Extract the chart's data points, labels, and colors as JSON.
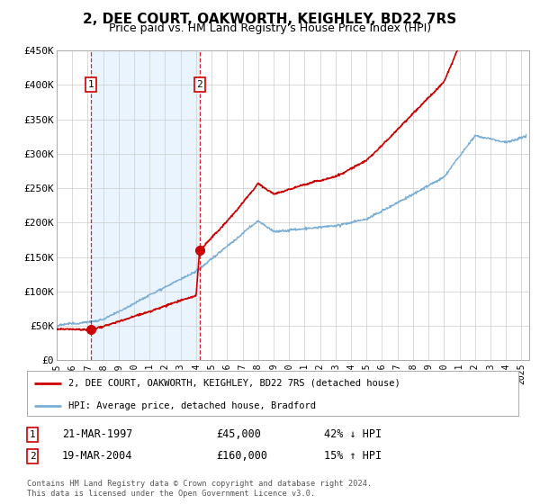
{
  "title": "2, DEE COURT, OAKWORTH, KEIGHLEY, BD22 7RS",
  "subtitle": "Price paid vs. HM Land Registry's House Price Index (HPI)",
  "sale1_date": 1997.22,
  "sale1_price": 45000,
  "sale1_label": "1",
  "sale1_text": "21-MAR-1997",
  "sale1_amount": "£45,000",
  "sale1_hpi": "42% ↓ HPI",
  "sale2_date": 2004.22,
  "sale2_price": 160000,
  "sale2_label": "2",
  "sale2_text": "19-MAR-2004",
  "sale2_amount": "£160,000",
  "sale2_hpi": "15% ↑ HPI",
  "xmin": 1995,
  "xmax": 2025.5,
  "ymin": 0,
  "ymax": 450000,
  "yticks": [
    0,
    50000,
    100000,
    150000,
    200000,
    250000,
    300000,
    350000,
    400000,
    450000
  ],
  "ytick_labels": [
    "£0",
    "£50K",
    "£100K",
    "£150K",
    "£200K",
    "£250K",
    "£300K",
    "£350K",
    "£400K",
    "£450K"
  ],
  "line1_color": "#cc0000",
  "line2_color": "#7aaed6",
  "fill_color": "#ddeeff",
  "vline_color": "#cc0000",
  "marker_color": "#cc0000",
  "background_color": "#ffffff",
  "plot_bg_color": "#ffffff",
  "grid_color": "#cccccc",
  "legend_line1": "2, DEE COURT, OAKWORTH, KEIGHLEY, BD22 7RS (detached house)",
  "legend_line2": "HPI: Average price, detached house, Bradford",
  "footnote": "Contains HM Land Registry data © Crown copyright and database right 2024.\nThis data is licensed under the Open Government Licence v3.0."
}
